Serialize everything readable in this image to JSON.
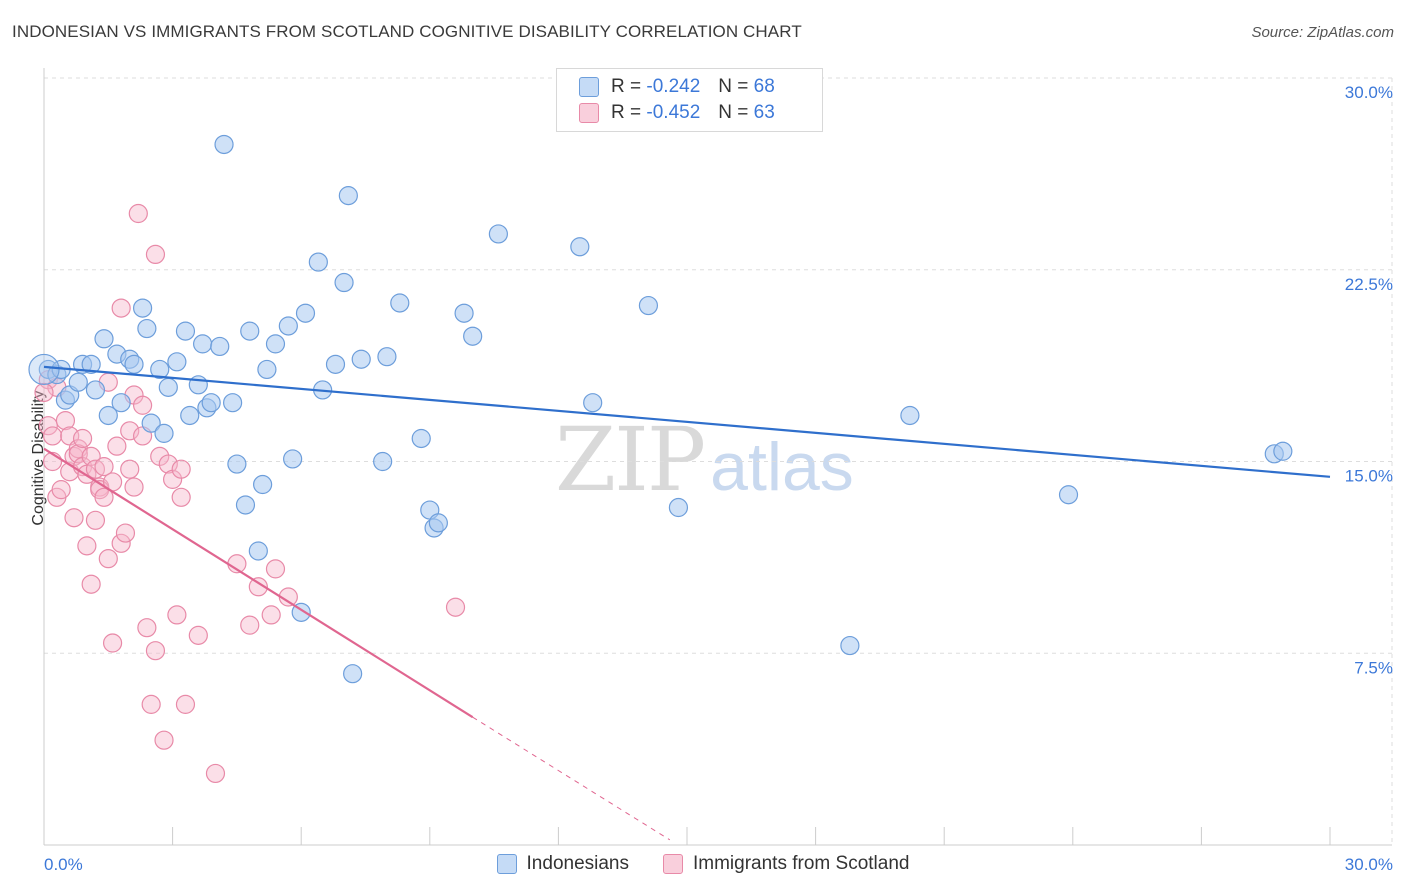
{
  "title": "INDONESIAN VS IMMIGRANTS FROM SCOTLAND COGNITIVE DISABILITY CORRELATION CHART",
  "source": "Source: ZipAtlas.com",
  "watermark": {
    "zip": "ZIP",
    "atlas": "atlas"
  },
  "legend": {
    "series1": {
      "r_label": "R =",
      "r_value": "-0.242",
      "n_label": "N =",
      "n_value": "68"
    },
    "series2": {
      "r_label": "R =",
      "r_value": "-0.452",
      "n_label": "N =",
      "n_value": "63"
    }
  },
  "colors": {
    "indonesians_fill": "#a8c8f0",
    "indonesians_stroke": "#6d9edb",
    "indonesians_line": "#2f6fcc",
    "scotland_fill": "#f6b9cb",
    "scotland_stroke": "#e88aa8",
    "scotland_line": "#e06690",
    "tick_color": "#3c78d8"
  },
  "chart_data": {
    "type": "scatter",
    "title": "INDONESIAN VS IMMIGRANTS FROM SCOTLAND COGNITIVE DISABILITY CORRELATION CHART",
    "xlabel": "",
    "ylabel": "Cognitive Disability",
    "xlim": [
      0,
      30
    ],
    "ylim": [
      0,
      30
    ],
    "x_tick_labels": [
      "0.0%",
      "30.0%"
    ],
    "y_ticks": [
      7.5,
      15.0,
      22.5,
      30.0
    ],
    "y_tick_labels": [
      "7.5%",
      "15.0%",
      "22.5%",
      "30.0%"
    ],
    "grid": true,
    "legend_position": "top-center",
    "series": [
      {
        "name": "Indonesians",
        "r": -0.242,
        "n": 68,
        "trend": {
          "x": [
            0,
            30
          ],
          "y": [
            18.7,
            14.4
          ]
        },
        "points": [
          [
            0.1,
            18.6
          ],
          [
            0.3,
            18.4
          ],
          [
            0.4,
            18.6
          ],
          [
            0.5,
            17.4
          ],
          [
            0.6,
            17.6
          ],
          [
            0.8,
            18.1
          ],
          [
            0.9,
            18.8
          ],
          [
            1.1,
            18.8
          ],
          [
            1.2,
            17.8
          ],
          [
            1.4,
            19.8
          ],
          [
            1.5,
            16.8
          ],
          [
            1.7,
            19.2
          ],
          [
            1.8,
            17.3
          ],
          [
            2.0,
            19.0
          ],
          [
            2.1,
            18.8
          ],
          [
            2.3,
            21.0
          ],
          [
            2.4,
            20.2
          ],
          [
            2.5,
            16.5
          ],
          [
            2.7,
            18.6
          ],
          [
            2.8,
            16.1
          ],
          [
            2.9,
            17.9
          ],
          [
            3.1,
            18.9
          ],
          [
            3.3,
            20.1
          ],
          [
            3.4,
            16.8
          ],
          [
            3.6,
            18.0
          ],
          [
            3.7,
            19.6
          ],
          [
            3.8,
            17.1
          ],
          [
            3.9,
            17.3
          ],
          [
            4.1,
            19.5
          ],
          [
            4.2,
            27.4
          ],
          [
            4.4,
            17.3
          ],
          [
            4.5,
            14.9
          ],
          [
            4.7,
            13.3
          ],
          [
            4.8,
            20.1
          ],
          [
            5.0,
            11.5
          ],
          [
            5.1,
            14.1
          ],
          [
            5.2,
            18.6
          ],
          [
            5.4,
            19.6
          ],
          [
            5.7,
            20.3
          ],
          [
            5.8,
            15.1
          ],
          [
            6.0,
            9.1
          ],
          [
            6.1,
            20.8
          ],
          [
            6.4,
            22.8
          ],
          [
            6.5,
            17.8
          ],
          [
            6.8,
            18.8
          ],
          [
            7.0,
            22.0
          ],
          [
            7.1,
            25.4
          ],
          [
            7.2,
            6.7
          ],
          [
            7.4,
            19.0
          ],
          [
            7.9,
            15.0
          ],
          [
            8.0,
            19.1
          ],
          [
            8.3,
            21.2
          ],
          [
            8.8,
            15.9
          ],
          [
            9.0,
            13.1
          ],
          [
            9.1,
            12.4
          ],
          [
            9.2,
            12.6
          ],
          [
            9.8,
            20.8
          ],
          [
            10.0,
            19.9
          ],
          [
            10.6,
            23.9
          ],
          [
            12.5,
            23.4
          ],
          [
            12.8,
            17.3
          ],
          [
            14.1,
            21.1
          ],
          [
            14.8,
            13.2
          ],
          [
            18.8,
            7.8
          ],
          [
            20.2,
            16.8
          ],
          [
            23.9,
            13.7
          ],
          [
            28.7,
            15.3
          ],
          [
            28.9,
            15.4
          ]
        ]
      },
      {
        "name": "Immigrants from Scotland",
        "r": -0.452,
        "n": 63,
        "trend": {
          "x": [
            0,
            10.0
          ],
          "y": [
            15.5,
            5.0
          ]
        },
        "trend_extended": {
          "x": [
            10.0,
            14.6
          ],
          "y": [
            5.0,
            0.2
          ]
        },
        "points": [
          [
            0.1,
            18.2
          ],
          [
            0.1,
            16.4
          ],
          [
            0.2,
            16.0
          ],
          [
            0.2,
            15.0
          ],
          [
            0.3,
            17.9
          ],
          [
            0.3,
            13.6
          ],
          [
            0.4,
            13.9
          ],
          [
            0.5,
            16.6
          ],
          [
            0.6,
            14.6
          ],
          [
            0.6,
            16.0
          ],
          [
            0.7,
            15.2
          ],
          [
            0.7,
            12.8
          ],
          [
            0.8,
            15.5
          ],
          [
            0.8,
            15.3
          ],
          [
            0.9,
            14.8
          ],
          [
            0.9,
            15.9
          ],
          [
            1.0,
            11.7
          ],
          [
            1.0,
            14.5
          ],
          [
            1.1,
            10.2
          ],
          [
            1.1,
            15.2
          ],
          [
            1.2,
            12.7
          ],
          [
            1.2,
            14.7
          ],
          [
            1.3,
            14.0
          ],
          [
            1.3,
            13.9
          ],
          [
            1.4,
            13.6
          ],
          [
            1.4,
            14.8
          ],
          [
            1.5,
            11.2
          ],
          [
            1.5,
            18.1
          ],
          [
            1.6,
            7.9
          ],
          [
            1.6,
            14.2
          ],
          [
            1.7,
            15.6
          ],
          [
            1.8,
            11.8
          ],
          [
            1.8,
            21.0
          ],
          [
            1.9,
            12.2
          ],
          [
            2.0,
            14.7
          ],
          [
            2.0,
            16.2
          ],
          [
            2.1,
            14.0
          ],
          [
            2.1,
            17.6
          ],
          [
            2.2,
            24.7
          ],
          [
            2.3,
            17.2
          ],
          [
            2.3,
            16.0
          ],
          [
            2.4,
            8.5
          ],
          [
            2.5,
            5.5
          ],
          [
            2.6,
            7.6
          ],
          [
            2.6,
            23.1
          ],
          [
            2.7,
            15.2
          ],
          [
            2.8,
            4.1
          ],
          [
            2.9,
            14.9
          ],
          [
            3.0,
            14.3
          ],
          [
            3.1,
            9.0
          ],
          [
            3.2,
            13.6
          ],
          [
            3.2,
            14.7
          ],
          [
            3.3,
            5.5
          ],
          [
            3.6,
            8.2
          ],
          [
            4.0,
            2.8
          ],
          [
            4.5,
            11.0
          ],
          [
            4.8,
            8.6
          ],
          [
            5.0,
            10.1
          ],
          [
            5.3,
            9.0
          ],
          [
            5.4,
            10.8
          ],
          [
            5.7,
            9.7
          ],
          [
            9.6,
            9.3
          ],
          [
            0.0,
            17.7
          ]
        ]
      }
    ]
  }
}
